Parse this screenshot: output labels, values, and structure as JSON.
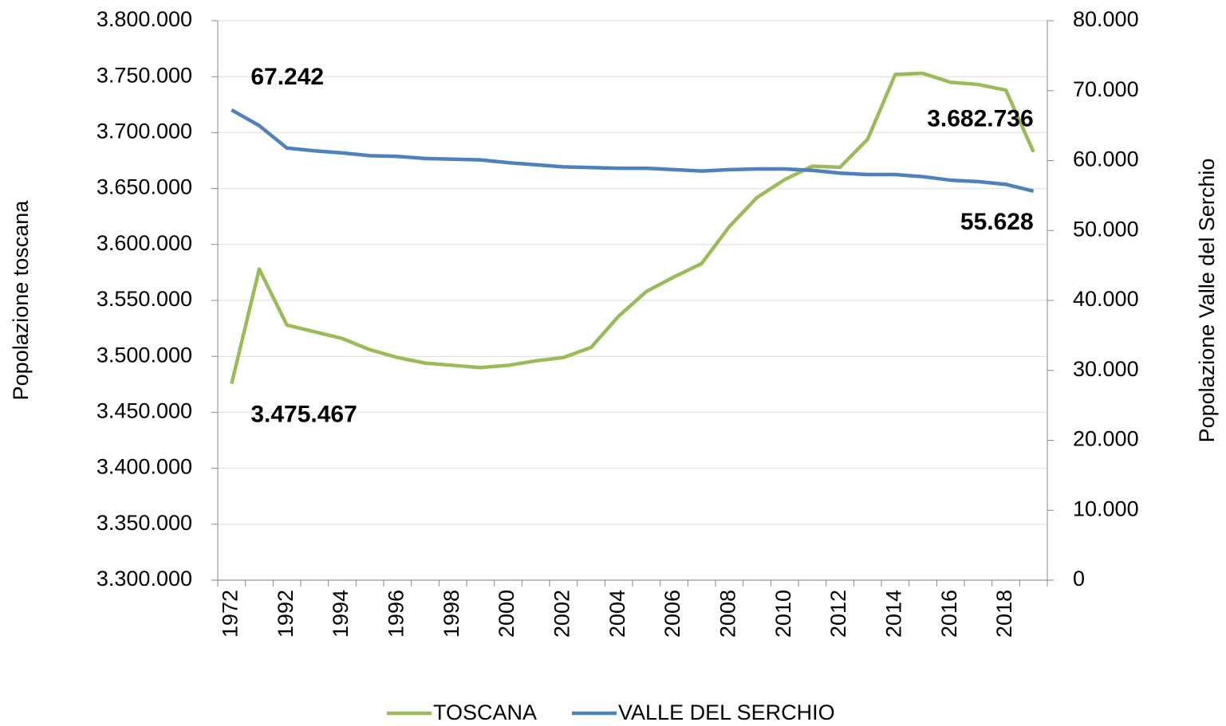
{
  "chart_data": {
    "type": "line",
    "categories": [
      "1972",
      null,
      "1992",
      null,
      "1994",
      null,
      "1996",
      null,
      "1998",
      null,
      "2000",
      null,
      "2002",
      null,
      "2004",
      null,
      "2006",
      null,
      "2008",
      null,
      "2010",
      null,
      "2012",
      null,
      "2014",
      null,
      "2016",
      null,
      "2018",
      null
    ],
    "series": [
      {
        "name": "TOSCANA",
        "color": "#9bbb59",
        "axis": "y",
        "values": [
          3475467,
          3578000,
          3528000,
          3522000,
          3516000,
          3506000,
          3499000,
          3494000,
          3492000,
          3490000,
          3492000,
          3496000,
          3499000,
          3508000,
          3536000,
          3558000,
          3571000,
          3583000,
          3616000,
          3642000,
          3658000,
          3670000,
          3669000,
          3694000,
          3752000,
          3753000,
          3745000,
          3743000,
          3738000,
          3682736
        ],
        "value_labels": [
          "3.475.467",
          null,
          null,
          null,
          null,
          null,
          null,
          null,
          null,
          null,
          null,
          null,
          null,
          null,
          null,
          null,
          null,
          null,
          null,
          null,
          null,
          null,
          null,
          null,
          null,
          null,
          null,
          null,
          null,
          "3.682.736"
        ]
      },
      {
        "name": "VALLE DEL SERCHIO",
        "color": "#4f81bd",
        "axis": "y2",
        "values": [
          67242,
          65000,
          61800,
          61400,
          61100,
          60700,
          60600,
          60300,
          60200,
          60100,
          59700,
          59400,
          59100,
          59000,
          58900,
          58900,
          58700,
          58500,
          58700,
          58800,
          58800,
          58600,
          58200,
          58000,
          58000,
          57700,
          57200,
          57000,
          56600,
          55628
        ],
        "value_labels": [
          "67.242",
          null,
          null,
          null,
          null,
          null,
          null,
          null,
          null,
          null,
          null,
          null,
          null,
          null,
          null,
          null,
          null,
          null,
          null,
          null,
          null,
          null,
          null,
          null,
          null,
          null,
          null,
          null,
          null,
          "55.628"
        ]
      }
    ],
    "y_label": "Popolazione toscana",
    "y2_label": "Popolazione Valle del Serchio",
    "ylim": [
      3300000,
      3800000
    ],
    "yticks": [
      {
        "value": 3300000,
        "label": "3.300.000"
      },
      {
        "value": 3350000,
        "label": "3.350.000"
      },
      {
        "value": 3400000,
        "label": "3.400.000"
      },
      {
        "value": 3450000,
        "label": "3.450.000"
      },
      {
        "value": 3500000,
        "label": "3.500.000"
      },
      {
        "value": 3550000,
        "label": "3.550.000"
      },
      {
        "value": 3600000,
        "label": "3.600.000"
      },
      {
        "value": 3650000,
        "label": "3.650.000"
      },
      {
        "value": 3700000,
        "label": "3.700.000"
      },
      {
        "value": 3750000,
        "label": "3.750.000"
      },
      {
        "value": 3800000,
        "label": "3.800.000"
      }
    ],
    "y2lim": [
      0,
      80000
    ],
    "y2ticks": [
      0,
      {
        "value": 10000,
        "label": "10.000"
      },
      {
        "value": 20000,
        "label": "20.000"
      },
      {
        "value": 30000,
        "label": "30.000"
      },
      {
        "value": 40000,
        "label": "40.000"
      },
      {
        "value": 50000,
        "label": "50.000"
      },
      {
        "value": 60000,
        "label": "60.000"
      },
      {
        "value": 70000,
        "label": "70.000"
      },
      {
        "value": 80000,
        "label": "80.000"
      }
    ],
    "grid": true,
    "legend": "bottom"
  }
}
